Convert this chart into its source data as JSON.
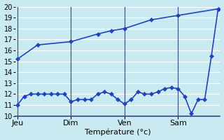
{
  "background_color": "#c8eaf0",
  "grid_color": "#b0d8e8",
  "line_color": "#2244bb",
  "xlabel": "Température (°c)",
  "ylim": [
    10,
    20
  ],
  "day_labels": [
    "Jeu",
    "Dim",
    "Ven",
    "Sam"
  ],
  "day_positions": [
    0,
    8,
    16,
    24
  ],
  "xlim": [
    -0.3,
    30.3
  ],
  "line1_x": [
    0,
    1,
    2,
    3,
    4,
    5,
    6,
    7,
    8,
    9,
    10,
    11,
    12,
    13,
    14,
    15,
    16,
    17,
    18,
    19,
    20,
    21,
    22,
    23,
    24,
    25,
    26,
    27,
    28,
    29,
    30
  ],
  "line1_y": [
    11.0,
    11.8,
    12.0,
    12.0,
    12.0,
    12.0,
    12.0,
    12.0,
    11.3,
    11.5,
    11.5,
    11.5,
    12.0,
    12.2,
    12.0,
    11.5,
    11.1,
    11.5,
    12.2,
    12.0,
    12.0,
    12.2,
    12.5,
    12.6,
    12.5,
    11.8,
    10.2,
    11.5,
    11.5,
    15.5,
    19.8
  ],
  "line2_x": [
    0,
    3,
    8,
    12,
    14,
    16,
    20,
    24,
    30
  ],
  "line2_y": [
    15.2,
    16.5,
    16.8,
    17.5,
    17.8,
    18.0,
    18.8,
    19.2,
    19.8
  ],
  "markersize": 3,
  "linewidth": 1.2,
  "tick_fontsize": 7,
  "xlabel_fontsize": 8
}
